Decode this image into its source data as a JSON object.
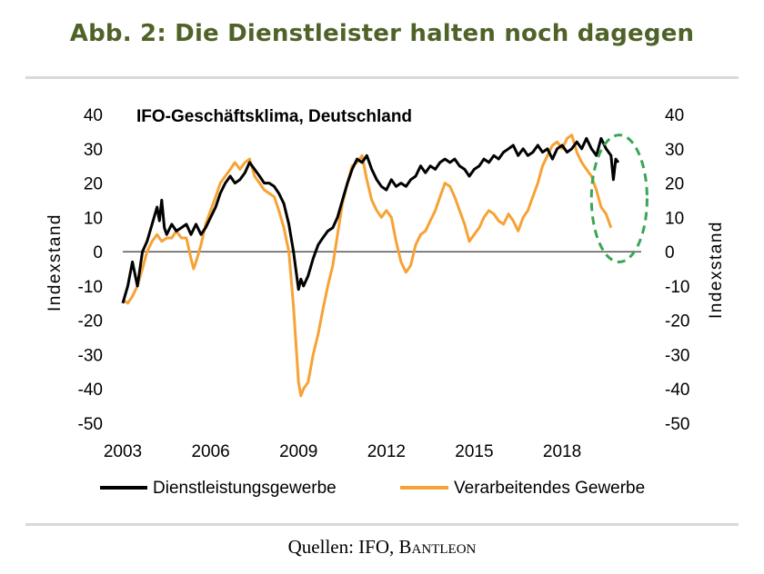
{
  "header": {
    "title": "Abb. 2: Die Dienstleister halten noch dagegen",
    "title_color": "#4f6228"
  },
  "footer": {
    "source_prefix": "Quellen: IFO, ",
    "source_name": "Bantleon"
  },
  "chart_data": {
    "type": "line",
    "title": "IFO-Geschäftsklima,  Deutschland",
    "ylabel_left": "Indexstand",
    "ylabel_right": "Indexstand",
    "ylim": [
      -50,
      40
    ],
    "y_ticks": [
      40,
      30,
      20,
      10,
      0,
      -10,
      -20,
      -30,
      -40,
      -50
    ],
    "xlim": [
      2003,
      2020.7
    ],
    "x_ticks": [
      2003,
      2006,
      2009,
      2012,
      2015,
      2018
    ],
    "grid": false,
    "legend_position": "bottom",
    "annotation": {
      "type": "dashed-ellipse",
      "color": "#3aa655",
      "x_range": [
        2019.0,
        2020.9
      ],
      "y_range": [
        -3,
        34
      ]
    },
    "series": [
      {
        "name": "Dienstleistungsgewerbe",
        "color": "#000000",
        "points": [
          [
            2003.0,
            -15
          ],
          [
            2003.17,
            -10
          ],
          [
            2003.33,
            -3
          ],
          [
            2003.5,
            -10
          ],
          [
            2003.67,
            0
          ],
          [
            2003.83,
            3
          ],
          [
            2004.0,
            8
          ],
          [
            2004.17,
            13
          ],
          [
            2004.25,
            9
          ],
          [
            2004.33,
            15
          ],
          [
            2004.42,
            7
          ],
          [
            2004.5,
            5
          ],
          [
            2004.67,
            8
          ],
          [
            2004.83,
            6
          ],
          [
            2005.0,
            7
          ],
          [
            2005.17,
            8
          ],
          [
            2005.33,
            5
          ],
          [
            2005.5,
            8
          ],
          [
            2005.67,
            5
          ],
          [
            2005.83,
            7
          ],
          [
            2006.0,
            10
          ],
          [
            2006.17,
            13
          ],
          [
            2006.33,
            17
          ],
          [
            2006.5,
            20
          ],
          [
            2006.67,
            22
          ],
          [
            2006.83,
            20
          ],
          [
            2007.0,
            21
          ],
          [
            2007.17,
            23
          ],
          [
            2007.33,
            26
          ],
          [
            2007.5,
            24
          ],
          [
            2007.67,
            22
          ],
          [
            2007.83,
            20
          ],
          [
            2008.0,
            20
          ],
          [
            2008.17,
            19
          ],
          [
            2008.33,
            17
          ],
          [
            2008.5,
            14
          ],
          [
            2008.67,
            8
          ],
          [
            2008.83,
            0
          ],
          [
            2009.0,
            -11
          ],
          [
            2009.08,
            -8
          ],
          [
            2009.17,
            -10
          ],
          [
            2009.33,
            -7
          ],
          [
            2009.5,
            -2
          ],
          [
            2009.67,
            2
          ],
          [
            2009.83,
            4
          ],
          [
            2010.0,
            6
          ],
          [
            2010.17,
            7
          ],
          [
            2010.33,
            10
          ],
          [
            2010.5,
            15
          ],
          [
            2010.67,
            20
          ],
          [
            2010.83,
            24
          ],
          [
            2011.0,
            27
          ],
          [
            2011.17,
            26
          ],
          [
            2011.33,
            28
          ],
          [
            2011.5,
            24
          ],
          [
            2011.67,
            21
          ],
          [
            2011.83,
            19
          ],
          [
            2012.0,
            18
          ],
          [
            2012.17,
            21
          ],
          [
            2012.33,
            19
          ],
          [
            2012.5,
            20
          ],
          [
            2012.67,
            19
          ],
          [
            2012.83,
            21
          ],
          [
            2013.0,
            22
          ],
          [
            2013.17,
            25
          ],
          [
            2013.33,
            23
          ],
          [
            2013.5,
            25
          ],
          [
            2013.67,
            24
          ],
          [
            2013.83,
            26
          ],
          [
            2014.0,
            27
          ],
          [
            2014.17,
            26
          ],
          [
            2014.33,
            27
          ],
          [
            2014.5,
            25
          ],
          [
            2014.67,
            24
          ],
          [
            2014.83,
            22
          ],
          [
            2015.0,
            24
          ],
          [
            2015.17,
            25
          ],
          [
            2015.33,
            27
          ],
          [
            2015.5,
            26
          ],
          [
            2015.67,
            28
          ],
          [
            2015.83,
            27
          ],
          [
            2016.0,
            29
          ],
          [
            2016.17,
            30
          ],
          [
            2016.33,
            31
          ],
          [
            2016.5,
            28
          ],
          [
            2016.67,
            30
          ],
          [
            2016.83,
            28
          ],
          [
            2017.0,
            29
          ],
          [
            2017.17,
            31
          ],
          [
            2017.33,
            29
          ],
          [
            2017.5,
            30
          ],
          [
            2017.67,
            27
          ],
          [
            2017.83,
            30
          ],
          [
            2018.0,
            31
          ],
          [
            2018.17,
            29
          ],
          [
            2018.33,
            30
          ],
          [
            2018.5,
            32
          ],
          [
            2018.67,
            30
          ],
          [
            2018.83,
            33
          ],
          [
            2019.0,
            30
          ],
          [
            2019.17,
            28
          ],
          [
            2019.33,
            33
          ],
          [
            2019.5,
            30
          ],
          [
            2019.67,
            28
          ],
          [
            2019.75,
            21
          ],
          [
            2019.83,
            27
          ],
          [
            2019.92,
            26
          ]
        ]
      },
      {
        "name": "Verarbeitendes Gewerbe",
        "color": "#f7a234",
        "points": [
          [
            2003.0,
            -14
          ],
          [
            2003.17,
            -15
          ],
          [
            2003.33,
            -13
          ],
          [
            2003.5,
            -10
          ],
          [
            2003.67,
            -5
          ],
          [
            2003.83,
            0
          ],
          [
            2004.0,
            3
          ],
          [
            2004.17,
            5
          ],
          [
            2004.33,
            3
          ],
          [
            2004.5,
            4
          ],
          [
            2004.67,
            4
          ],
          [
            2004.83,
            6
          ],
          [
            2005.0,
            4
          ],
          [
            2005.17,
            4
          ],
          [
            2005.33,
            -2
          ],
          [
            2005.42,
            -5
          ],
          [
            2005.5,
            -3
          ],
          [
            2005.67,
            2
          ],
          [
            2005.83,
            8
          ],
          [
            2006.0,
            12
          ],
          [
            2006.17,
            16
          ],
          [
            2006.33,
            20
          ],
          [
            2006.5,
            22
          ],
          [
            2006.67,
            24
          ],
          [
            2006.83,
            26
          ],
          [
            2007.0,
            24
          ],
          [
            2007.17,
            26
          ],
          [
            2007.33,
            27
          ],
          [
            2007.5,
            22
          ],
          [
            2007.67,
            20
          ],
          [
            2007.83,
            18
          ],
          [
            2008.0,
            17
          ],
          [
            2008.17,
            16
          ],
          [
            2008.33,
            12
          ],
          [
            2008.5,
            7
          ],
          [
            2008.67,
            0
          ],
          [
            2008.83,
            -16
          ],
          [
            2009.0,
            -38
          ],
          [
            2009.08,
            -42
          ],
          [
            2009.17,
            -40
          ],
          [
            2009.33,
            -38
          ],
          [
            2009.5,
            -30
          ],
          [
            2009.67,
            -24
          ],
          [
            2009.83,
            -17
          ],
          [
            2010.0,
            -10
          ],
          [
            2010.17,
            -4
          ],
          [
            2010.33,
            5
          ],
          [
            2010.5,
            14
          ],
          [
            2010.67,
            20
          ],
          [
            2010.83,
            25
          ],
          [
            2011.0,
            26
          ],
          [
            2011.17,
            28
          ],
          [
            2011.33,
            21
          ],
          [
            2011.5,
            15
          ],
          [
            2011.67,
            12
          ],
          [
            2011.83,
            10
          ],
          [
            2012.0,
            12
          ],
          [
            2012.17,
            10
          ],
          [
            2012.33,
            3
          ],
          [
            2012.5,
            -3
          ],
          [
            2012.67,
            -6
          ],
          [
            2012.83,
            -4
          ],
          [
            2013.0,
            2
          ],
          [
            2013.17,
            5
          ],
          [
            2013.33,
            6
          ],
          [
            2013.5,
            9
          ],
          [
            2013.67,
            12
          ],
          [
            2013.83,
            16
          ],
          [
            2014.0,
            20
          ],
          [
            2014.17,
            19
          ],
          [
            2014.33,
            16
          ],
          [
            2014.5,
            12
          ],
          [
            2014.67,
            8
          ],
          [
            2014.83,
            3
          ],
          [
            2015.0,
            5
          ],
          [
            2015.17,
            7
          ],
          [
            2015.33,
            10
          ],
          [
            2015.5,
            12
          ],
          [
            2015.67,
            11
          ],
          [
            2015.83,
            9
          ],
          [
            2016.0,
            8
          ],
          [
            2016.17,
            11
          ],
          [
            2016.33,
            9
          ],
          [
            2016.5,
            6
          ],
          [
            2016.67,
            10
          ],
          [
            2016.83,
            12
          ],
          [
            2017.0,
            16
          ],
          [
            2017.17,
            20
          ],
          [
            2017.33,
            25
          ],
          [
            2017.5,
            28
          ],
          [
            2017.67,
            31
          ],
          [
            2017.83,
            32
          ],
          [
            2018.0,
            30
          ],
          [
            2018.17,
            33
          ],
          [
            2018.33,
            34
          ],
          [
            2018.5,
            29
          ],
          [
            2018.67,
            26
          ],
          [
            2018.83,
            24
          ],
          [
            2019.0,
            22
          ],
          [
            2019.17,
            18
          ],
          [
            2019.33,
            13
          ],
          [
            2019.5,
            11
          ],
          [
            2019.67,
            7
          ]
        ]
      }
    ]
  }
}
